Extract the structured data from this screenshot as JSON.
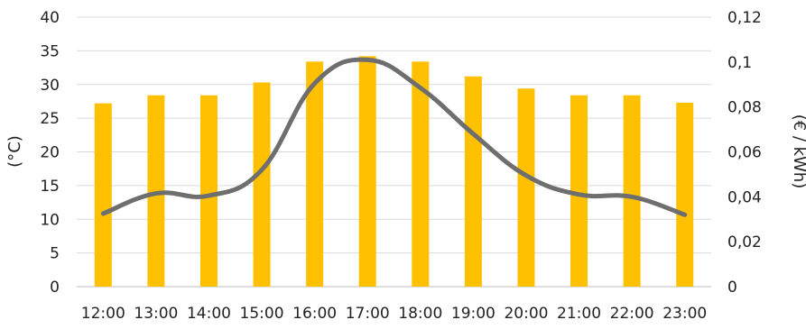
{
  "chart_data": {
    "type": "bar",
    "categories": [
      "12:00",
      "13:00",
      "14:00",
      "15:00",
      "16:00",
      "17:00",
      "18:00",
      "19:00",
      "20:00",
      "21:00",
      "22:00",
      "23:00"
    ],
    "series": [
      {
        "type": "bar",
        "axis": "left",
        "values": [
          27.2,
          28.4,
          28.4,
          30.3,
          33.4,
          34.2,
          33.4,
          31.2,
          29.4,
          28.4,
          28.4,
          27.3
        ],
        "color": "#FFC000"
      },
      {
        "type": "line",
        "axis": "right",
        "values": [
          0.0325,
          0.0415,
          0.0405,
          0.052,
          0.0905,
          0.101,
          0.0885,
          0.068,
          0.0495,
          0.041,
          0.04,
          0.032
        ],
        "color": "#6E6E6E"
      }
    ],
    "ylabel": "(°C)",
    "y2label": "(€ / kWh)",
    "ylim": [
      0,
      40
    ],
    "y2lim": [
      0,
      0.12
    ],
    "yticks": [
      "0",
      "5",
      "10",
      "15",
      "20",
      "25",
      "30",
      "35",
      "40"
    ],
    "y2ticks": [
      "0",
      "0,02",
      "0,04",
      "0,06",
      "0,08",
      "0,1",
      "0,12"
    ],
    "grid": true,
    "legend": "none"
  }
}
